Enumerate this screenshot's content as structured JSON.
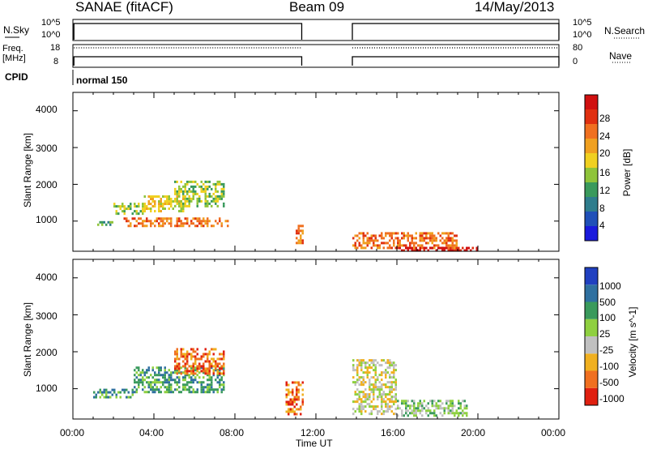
{
  "header": {
    "station": "SANAE (fitACF)",
    "beam": "Beam 09",
    "date": "14/May/2013"
  },
  "strips": {
    "nsky_label": "N.Sky",
    "nsky_ticks": [
      "10^5",
      "10^0"
    ],
    "nsearch_label": "N.Search",
    "nsearch_ticks": [
      "10^5",
      "10^0"
    ],
    "freq_label_1": "Freq.",
    "freq_label_2": "[MHz]",
    "freq_ticks": [
      "18",
      "8"
    ],
    "nave_label": "Nave",
    "nave_ticks": [
      "80",
      "0"
    ],
    "cpid_label": "CPID",
    "cpid_value": "normal 150"
  },
  "axes": {
    "x_ticks": [
      "00:00",
      "04:00",
      "08:00",
      "12:00",
      "16:00",
      "20:00",
      "00:00"
    ],
    "x_label": "Time UT",
    "y_ticks": [
      "4000",
      "3000",
      "2000",
      "1000"
    ],
    "y_label": "Slant Range [km]"
  },
  "colorbars": {
    "power": {
      "label": "Power [dB]",
      "ticks": [
        "28",
        "24",
        "20",
        "16",
        "12",
        "8",
        "4"
      ],
      "colors": [
        "#1a1adc",
        "#2050b8",
        "#2f7d8d",
        "#3a9a5c",
        "#8fc43a",
        "#f0d020",
        "#f0a020",
        "#f07020",
        "#e03010",
        "#d01010"
      ]
    },
    "velocity": {
      "label": "Velocity [m s^-1]",
      "ticks": [
        "1000",
        "500",
        "100",
        "25",
        "-25",
        "-100",
        "-500",
        "-1000"
      ],
      "colors": [
        "#2040c0",
        "#2f70a0",
        "#3a9a5c",
        "#8fd040",
        "#c0c0c0",
        "#f0b020",
        "#f07020",
        "#e02010"
      ]
    }
  },
  "chart_data": [
    {
      "type": "heatmap",
      "name": "power",
      "x_unit": "hours UT",
      "y_unit": "km",
      "xlim": [
        0,
        24
      ],
      "ylim": [
        180,
        4500
      ],
      "data_gaps": [
        [
          11.3,
          13.8
        ]
      ],
      "echo_regions": [
        {
          "t": [
            1.2,
            2.0
          ],
          "r": [
            900,
            1000
          ],
          "db": 10
        },
        {
          "t": [
            2.0,
            3.5
          ],
          "r": [
            1200,
            1500
          ],
          "db": 12
        },
        {
          "t": [
            2.5,
            7.7
          ],
          "r": [
            900,
            1100
          ],
          "db": 22
        },
        {
          "t": [
            3.5,
            5.5
          ],
          "r": [
            1300,
            1700
          ],
          "db": 14
        },
        {
          "t": [
            5.0,
            7.5
          ],
          "r": [
            1400,
            2100
          ],
          "db": 12
        },
        {
          "t": [
            11.0,
            11.3
          ],
          "r": [
            400,
            900
          ],
          "db": 22
        },
        {
          "t": [
            13.8,
            19.0
          ],
          "r": [
            300,
            700
          ],
          "db": 20
        },
        {
          "t": [
            16.0,
            20.0
          ],
          "r": [
            200,
            300
          ],
          "db": 26
        }
      ]
    },
    {
      "type": "heatmap",
      "name": "velocity",
      "x_unit": "hours UT",
      "y_unit": "km",
      "xlim": [
        0,
        24
      ],
      "ylim": [
        180,
        4500
      ],
      "data_gaps": [
        [
          11.3,
          13.8
        ]
      ],
      "echo_regions": [
        {
          "t": [
            1.0,
            3.0
          ],
          "r": [
            800,
            1000
          ],
          "v": 150
        },
        {
          "t": [
            3.0,
            7.5
          ],
          "r": [
            900,
            1600
          ],
          "v": 200
        },
        {
          "t": [
            5.0,
            7.5
          ],
          "r": [
            1400,
            2100
          ],
          "v": -200
        },
        {
          "t": [
            10.5,
            11.3
          ],
          "r": [
            300,
            1200
          ],
          "v": -100
        },
        {
          "t": [
            13.8,
            16.0
          ],
          "r": [
            300,
            1800
          ],
          "v": 0
        },
        {
          "t": [
            16.0,
            19.5
          ],
          "r": [
            300,
            700
          ],
          "v": 50
        }
      ]
    }
  ]
}
